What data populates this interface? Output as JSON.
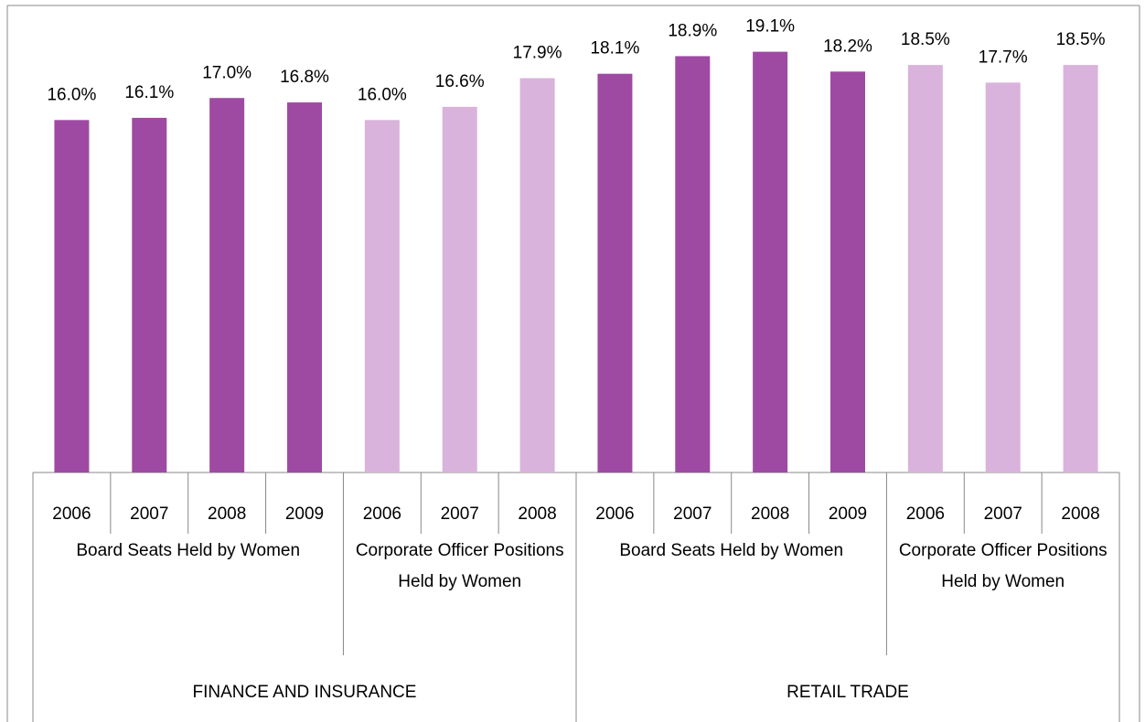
{
  "chart_data": {
    "type": "bar",
    "ylim": [
      0,
      21.2
    ],
    "groups": [
      {
        "name": "FINANCE AND INSURANCE",
        "subgroups": [
          {
            "name": "Board Seats Held by Women",
            "color": "#9e4aa3",
            "categories": [
              "2006",
              "2007",
              "2008",
              "2009"
            ],
            "values": [
              16.0,
              16.1,
              17.0,
              16.8
            ],
            "value_labels": [
              "16.0%",
              "16.1%",
              "17.0%",
              "16.8%"
            ]
          },
          {
            "name": "Corporate Officer Positions Held by Women",
            "color": "#d9b3dc",
            "categories": [
              "2006",
              "2007",
              "2008"
            ],
            "values": [
              16.0,
              16.6,
              17.9
            ],
            "value_labels": [
              "16.0%",
              "16.6%",
              "17.9%"
            ]
          }
        ]
      },
      {
        "name": "RETAIL TRADE",
        "subgroups": [
          {
            "name": "Board Seats Held by Women",
            "color": "#9e4aa3",
            "categories": [
              "2006",
              "2007",
              "2008",
              "2009"
            ],
            "values": [
              18.1,
              18.9,
              19.1,
              18.2
            ],
            "value_labels": [
              "18.1%",
              "18.9%",
              "19.1%",
              "18.2%"
            ]
          },
          {
            "name": "Corporate Officer Positions Held by Women",
            "color": "#d9b3dc",
            "categories": [
              "2006",
              "2007",
              "2008"
            ],
            "values": [
              18.5,
              17.7,
              18.5
            ],
            "value_labels": [
              "18.5%",
              "17.7%",
              "18.5%"
            ]
          }
        ]
      }
    ]
  }
}
